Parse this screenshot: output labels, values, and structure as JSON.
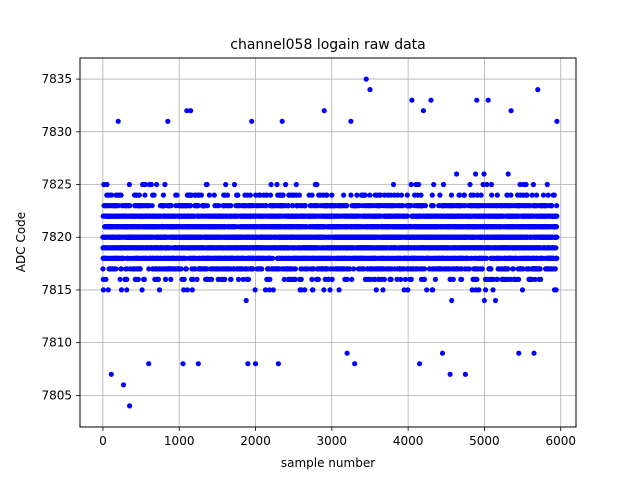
{
  "chart_data": {
    "type": "scatter",
    "title": "channel058 logain raw data",
    "xlabel": "sample number",
    "ylabel": "ADC Code",
    "xlim": [
      -300,
      6200
    ],
    "ylim": [
      7802,
      7837
    ],
    "xticks": [
      0,
      1000,
      2000,
      3000,
      4000,
      5000,
      6000
    ],
    "yticks": [
      7805,
      7810,
      7815,
      7820,
      7825,
      7830,
      7835
    ],
    "grid": true,
    "marker_color": "#0000ff",
    "series": [
      {
        "n_samples": 6000,
        "x_range": [
          0,
          5950
        ],
        "baseline_mean": 7820,
        "bulk_range": [
          7811,
          7829
        ],
        "notable_points": [
          {
            "x": 350,
            "y": 7804
          },
          {
            "x": 270,
            "y": 7806
          },
          {
            "x": 110,
            "y": 7807
          },
          {
            "x": 4550,
            "y": 7807
          },
          {
            "x": 4750,
            "y": 7807
          },
          {
            "x": 3450,
            "y": 7835
          },
          {
            "x": 3500,
            "y": 7834
          },
          {
            "x": 5700,
            "y": 7834
          },
          {
            "x": 4050,
            "y": 7833
          },
          {
            "x": 4300,
            "y": 7833
          },
          {
            "x": 4900,
            "y": 7833
          },
          {
            "x": 5050,
            "y": 7833
          },
          {
            "x": 1100,
            "y": 7832
          },
          {
            "x": 1150,
            "y": 7832
          },
          {
            "x": 2900,
            "y": 7832
          },
          {
            "x": 4200,
            "y": 7832
          },
          {
            "x": 5350,
            "y": 7832
          },
          {
            "x": 200,
            "y": 7831
          },
          {
            "x": 850,
            "y": 7831
          },
          {
            "x": 1950,
            "y": 7831
          },
          {
            "x": 2350,
            "y": 7831
          },
          {
            "x": 3250,
            "y": 7831
          },
          {
            "x": 5950,
            "y": 7831
          },
          {
            "x": 600,
            "y": 7808
          },
          {
            "x": 1050,
            "y": 7808
          },
          {
            "x": 1250,
            "y": 7808
          },
          {
            "x": 1900,
            "y": 7808
          },
          {
            "x": 2000,
            "y": 7808
          },
          {
            "x": 2300,
            "y": 7808
          },
          {
            "x": 3300,
            "y": 7808
          },
          {
            "x": 4150,
            "y": 7808
          },
          {
            "x": 3200,
            "y": 7809
          },
          {
            "x": 4450,
            "y": 7809
          },
          {
            "x": 5450,
            "y": 7809
          },
          {
            "x": 5650,
            "y": 7809
          }
        ]
      }
    ]
  }
}
